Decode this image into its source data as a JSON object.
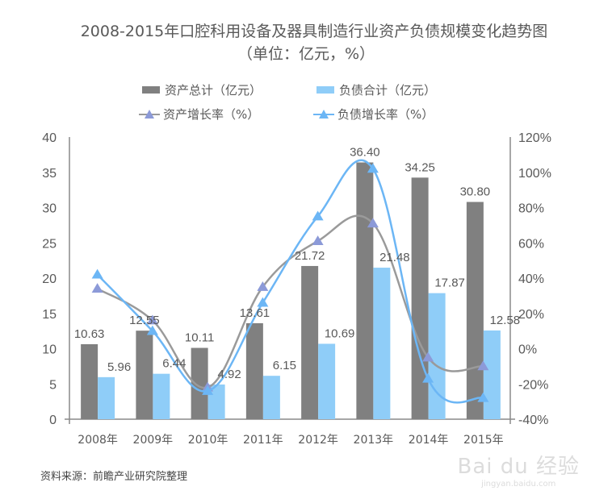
{
  "chart_data": {
    "type": "bar+line",
    "title": "2008-2015年口腔科用设备及器具制造行业资产负债规模变化趋势图",
    "subtitle": "（单位：亿元，%）",
    "categories": [
      "2008年",
      "2009年",
      "2010年",
      "2011年",
      "2012年",
      "2013年",
      "2014年",
      "2015年"
    ],
    "series": [
      {
        "name": "资产总计（亿元）",
        "type": "bar",
        "axis": "left",
        "color": "#808080",
        "values": [
          10.63,
          12.55,
          10.11,
          13.61,
          21.72,
          36.4,
          34.25,
          30.8
        ],
        "labels": [
          "10.63",
          "12.55",
          "10.11",
          "13.61",
          "21.72",
          "36.40",
          "34.25",
          "30.80"
        ]
      },
      {
        "name": "负债合计（亿元）",
        "type": "bar",
        "axis": "left",
        "color": "#8fcdf8",
        "values": [
          5.96,
          6.44,
          4.92,
          6.15,
          10.69,
          21.48,
          17.87,
          12.58
        ],
        "labels": [
          "5.96",
          "6.44",
          "4.92",
          "6.15",
          "10.69",
          "21.48",
          "17.87",
          "12.58"
        ]
      },
      {
        "name": "资产增长率（%）",
        "type": "line",
        "axis": "right",
        "color": "#9a9a9a",
        "marker_color": "#8c9ad8",
        "values": [
          34,
          16,
          -22,
          35,
          61,
          71,
          -5,
          -10
        ]
      },
      {
        "name": "负债增长率（%）",
        "type": "line",
        "axis": "right",
        "color": "#6cb6f5",
        "marker_color": "#6cb6f5",
        "values": [
          42,
          10,
          -24,
          26,
          75,
          102,
          -17,
          -28
        ]
      }
    ],
    "left_axis": {
      "min": 0,
      "max": 40,
      "ticks": [
        "0",
        "5",
        "10",
        "15",
        "20",
        "25",
        "30",
        "35",
        "40"
      ]
    },
    "right_axis": {
      "min": -40,
      "max": 120,
      "ticks": [
        "-40%",
        "-20%",
        "0%",
        "20%",
        "40%",
        "60%",
        "80%",
        "100%",
        "120%"
      ]
    },
    "grid": false,
    "legend_position": "top-center"
  },
  "legend": {
    "assets_total": "资产总计（亿元）",
    "liabilities_total": "负债合计（亿元）",
    "assets_growth": "资产增长率（%）",
    "liabilities_growth": "负债增长率（%）"
  },
  "source": "资料来源：前瞻产业研究院整理",
  "watermark": {
    "line1": "Bai du 经验",
    "line2": "jingyan.baidu.com"
  }
}
